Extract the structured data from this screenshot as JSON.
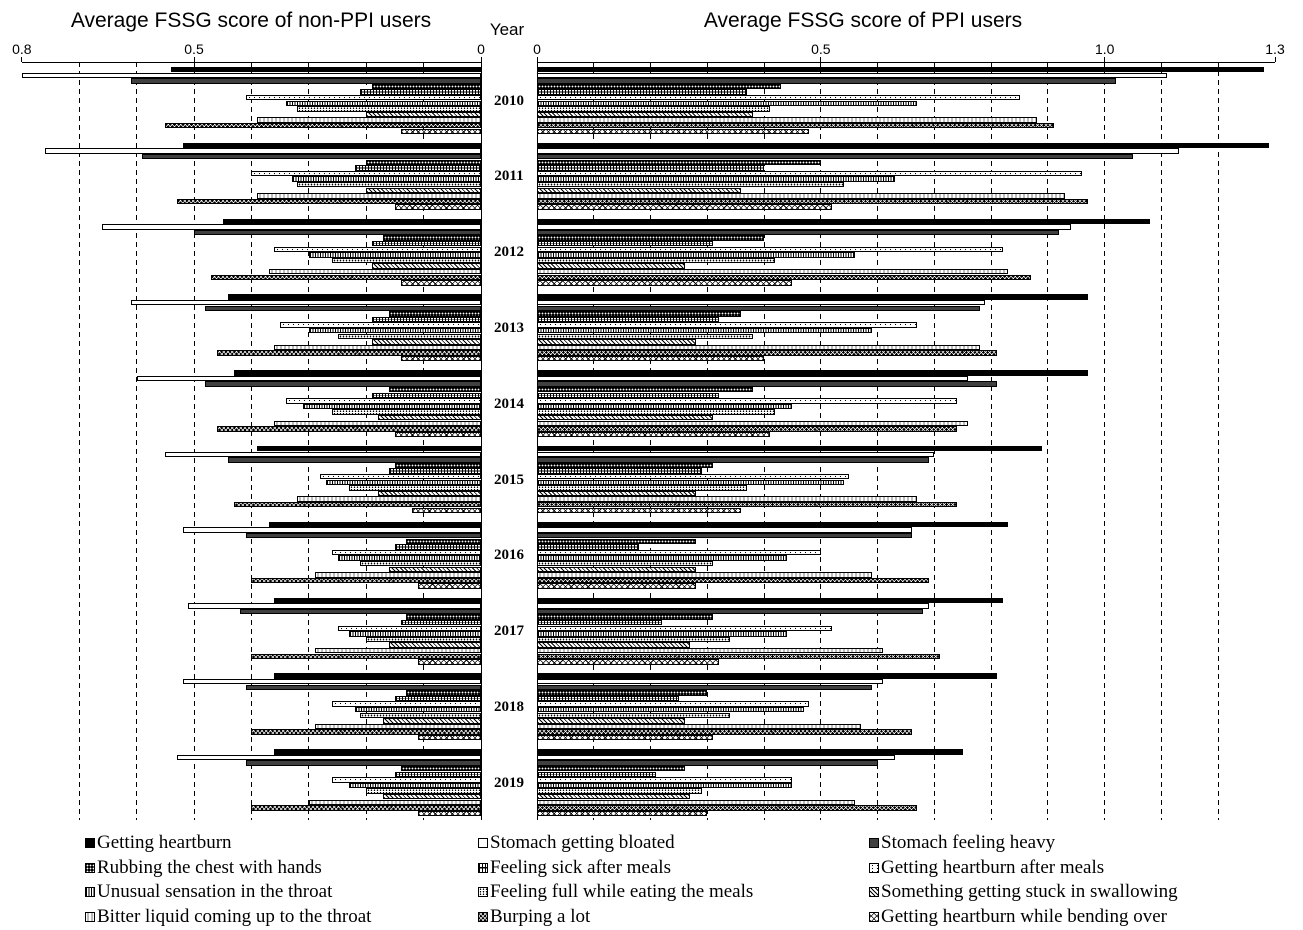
{
  "chart_data": {
    "type": "bar",
    "orientation": "horizontal",
    "legend": "bottom",
    "grid": true,
    "grid_step": 0.1,
    "category_label": "Year",
    "categories": [
      "2010",
      "2011",
      "2012",
      "2013",
      "2014",
      "2015",
      "2016",
      "2017",
      "2018",
      "2019"
    ],
    "panels": [
      {
        "title": "Average FSSG score of non-PPI users",
        "xlim": [
          0,
          0.8
        ],
        "reversed": true,
        "xticks": [
          "0.8",
          "0.5",
          "0"
        ]
      },
      {
        "title": "Average FSSG score of PPI users",
        "xlim": [
          0,
          1.3
        ],
        "reversed": false,
        "xticks": [
          "0",
          "0.5",
          "1.0",
          "1.3"
        ]
      }
    ],
    "series": [
      {
        "name": "Getting heartburn",
        "non_ppi": [
          0.54,
          0.52,
          0.45,
          0.44,
          0.43,
          0.39,
          0.37,
          0.36,
          0.36,
          0.36
        ],
        "ppi": [
          1.28,
          1.29,
          1.08,
          0.97,
          0.97,
          0.89,
          0.83,
          0.82,
          0.81,
          0.75
        ]
      },
      {
        "name": "Stomach getting bloated",
        "non_ppi": [
          0.8,
          0.76,
          0.66,
          0.61,
          0.6,
          0.55,
          0.52,
          0.51,
          0.52,
          0.53
        ],
        "ppi": [
          1.11,
          1.13,
          0.94,
          0.79,
          0.76,
          0.7,
          0.66,
          0.69,
          0.61,
          0.63
        ]
      },
      {
        "name": "Stomach feeling heavy",
        "non_ppi": [
          0.61,
          0.59,
          0.5,
          0.48,
          0.48,
          0.44,
          0.41,
          0.42,
          0.41,
          0.41
        ],
        "ppi": [
          1.02,
          1.05,
          0.92,
          0.78,
          0.81,
          0.69,
          0.66,
          0.68,
          0.59,
          0.6
        ]
      },
      {
        "name": "Rubbing the chest with hands",
        "non_ppi": [
          0.19,
          0.2,
          0.17,
          0.16,
          0.16,
          0.15,
          0.13,
          0.13,
          0.13,
          0.14
        ],
        "ppi": [
          0.43,
          0.5,
          0.4,
          0.36,
          0.38,
          0.31,
          0.28,
          0.31,
          0.3,
          0.26
        ]
      },
      {
        "name": "Feeling sick after meals",
        "non_ppi": [
          0.21,
          0.22,
          0.19,
          0.19,
          0.19,
          0.16,
          0.15,
          0.14,
          0.15,
          0.15
        ],
        "ppi": [
          0.37,
          0.4,
          0.31,
          0.32,
          0.32,
          0.29,
          0.18,
          0.22,
          0.25,
          0.21
        ]
      },
      {
        "name": "Getting heartburn after meals",
        "non_ppi": [
          0.41,
          0.4,
          0.36,
          0.35,
          0.34,
          0.28,
          0.26,
          0.25,
          0.26,
          0.26
        ],
        "ppi": [
          0.85,
          0.96,
          0.82,
          0.67,
          0.74,
          0.55,
          0.5,
          0.52,
          0.48,
          0.45
        ]
      },
      {
        "name": "Unusual sensation in the throat",
        "non_ppi": [
          0.34,
          0.33,
          0.3,
          0.3,
          0.31,
          0.27,
          0.25,
          0.23,
          0.22,
          0.23
        ],
        "ppi": [
          0.67,
          0.63,
          0.56,
          0.59,
          0.45,
          0.54,
          0.44,
          0.44,
          0.47,
          0.45
        ]
      },
      {
        "name": "Feeling full while eating the meals",
        "non_ppi": [
          0.32,
          0.32,
          0.26,
          0.25,
          0.26,
          0.23,
          0.21,
          0.2,
          0.21,
          0.2
        ],
        "ppi": [
          0.41,
          0.54,
          0.42,
          0.38,
          0.42,
          0.37,
          0.31,
          0.34,
          0.34,
          0.29
        ]
      },
      {
        "name": "Something getting stuck in swallowing",
        "non_ppi": [
          0.2,
          0.2,
          0.19,
          0.19,
          0.18,
          0.18,
          0.16,
          0.16,
          0.17,
          0.17
        ],
        "ppi": [
          0.38,
          0.36,
          0.26,
          0.28,
          0.31,
          0.28,
          0.28,
          0.27,
          0.26,
          0.27
        ]
      },
      {
        "name": "Bitter liquid coming up to the throat",
        "non_ppi": [
          0.39,
          0.39,
          0.37,
          0.36,
          0.36,
          0.32,
          0.29,
          0.29,
          0.29,
          0.3
        ],
        "ppi": [
          0.88,
          0.93,
          0.83,
          0.78,
          0.76,
          0.67,
          0.59,
          0.61,
          0.57,
          0.56
        ]
      },
      {
        "name": "Burping a lot",
        "non_ppi": [
          0.55,
          0.53,
          0.47,
          0.46,
          0.46,
          0.43,
          0.4,
          0.4,
          0.4,
          0.4
        ],
        "ppi": [
          0.91,
          0.97,
          0.87,
          0.81,
          0.74,
          0.74,
          0.69,
          0.71,
          0.66,
          0.67
        ]
      },
      {
        "name": "Getting heartburn while bending over",
        "non_ppi": [
          0.14,
          0.15,
          0.14,
          0.14,
          0.15,
          0.12,
          0.11,
          0.11,
          0.11,
          0.11
        ],
        "ppi": [
          0.48,
          0.52,
          0.45,
          0.4,
          0.41,
          0.36,
          0.28,
          0.32,
          0.31,
          0.3
        ]
      }
    ]
  }
}
